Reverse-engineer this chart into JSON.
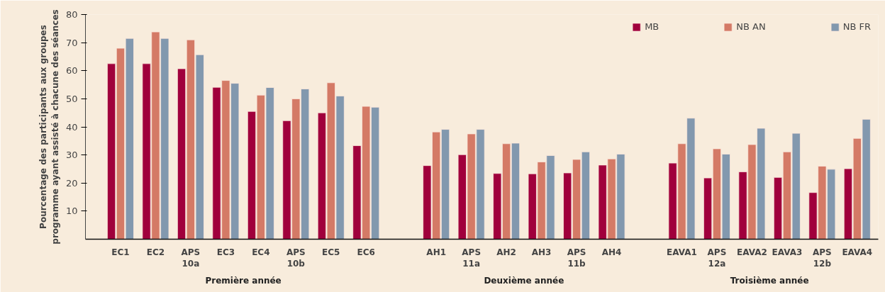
{
  "chart_data": {
    "type": "bar",
    "ylabel": "Pourcentage des participants aux groupes\nprogramme ayant assisté à chacune des séances",
    "categories": [
      "EC1",
      "EC2",
      "APS\n10a",
      "EC3",
      "EC4",
      "APS\n10b",
      "EC5",
      "EC6",
      null,
      "AH1",
      "APS\n11a",
      "AH2",
      "AH3",
      "APS\n11b",
      "AH4",
      null,
      "EAVA1",
      "APS\n12a",
      "EAVA2",
      "EAVA3",
      "APS\n12b",
      "EAVA4"
    ],
    "series": [
      {
        "name": "MB",
        "color": "#a0003c",
        "values": [
          62.5,
          62.5,
          60.7,
          54.1,
          45.5,
          42.2,
          45,
          33.3,
          null,
          26.2,
          30.1,
          23.4,
          23.3,
          23.6,
          26.4,
          null,
          27.1,
          21.8,
          24,
          22,
          16.6,
          25.1
        ]
      },
      {
        "name": "NB AN",
        "color": "#d47a66",
        "values": [
          68,
          73.8,
          71,
          56.5,
          51.3,
          50,
          55.7,
          47.3,
          null,
          38.2,
          37.5,
          34,
          27.5,
          28.4,
          28.6,
          null,
          34,
          32.2,
          33.7,
          31.1,
          26,
          35.9
        ]
      },
      {
        "name": "NB FR",
        "color": "#8298ae",
        "values": [
          71.5,
          71.5,
          65.7,
          55.5,
          54,
          53.5,
          51,
          47,
          null,
          39.1,
          39.1,
          34.2,
          29.8,
          31.1,
          30.3,
          null,
          43.1,
          30.3,
          39.5,
          37.7,
          24.9,
          42.7
        ]
      }
    ],
    "annotations": [
      "Première année",
      "Deuxième année",
      "Troisième année"
    ],
    "ylim": [
      0,
      80
    ],
    "yticks": [
      10,
      20,
      30,
      40,
      50,
      60,
      70,
      80
    ],
    "grid": false,
    "legend": "top right"
  }
}
